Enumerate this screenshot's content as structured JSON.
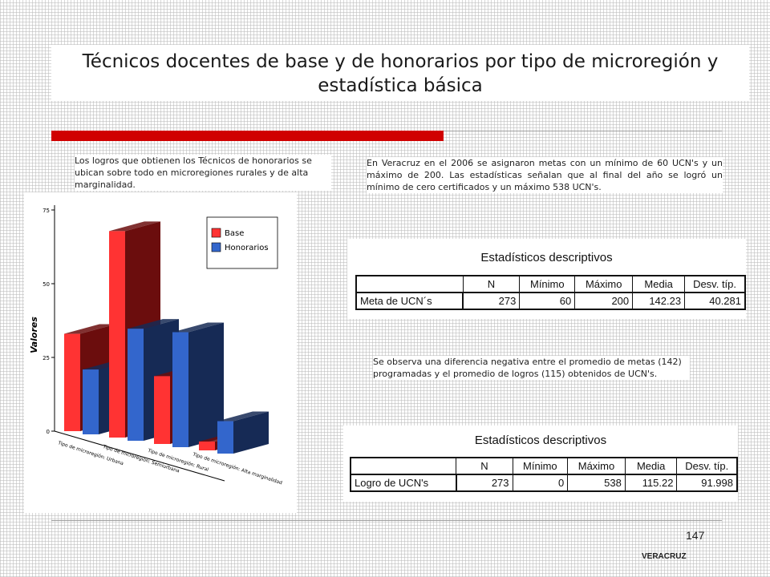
{
  "title": "Técnicos docentes de base y de honorarios por tipo de microregión y estadística básica",
  "text_left": "Los logros que obtienen los Técnicos de honorarios se ubican sobre todo en microregiones rurales y de alta marginalidad.",
  "text_right_top": "En Veracruz en el 2006 se asignaron metas con un mínimo de 60 UCN's y un máximo de 200. Las estadísticas señalan que al final del año se logró un mínimo de cero certificados y un máximo 538 UCN's.",
  "text_right_mid": "Se observa una diferencia negativa entre el promedio de metas (142) programadas y el promedio de logros (115) obtenidos de UCN's.",
  "colors": {
    "base": "#ff3333",
    "base_side": "#6b0d0d",
    "honorarios": "#3366cc",
    "honorarios_side": "#162a55",
    "accent": "#d00000"
  },
  "chart_data": {
    "type": "bar",
    "ylabel": "Valores",
    "yticks": [
      0,
      25,
      50,
      75
    ],
    "ylim": [
      0,
      75
    ],
    "categories": [
      "Tipo de microregión: Urbana",
      "Tipo de microregión: Semiurbana",
      "Tipo de microregión: Rural",
      "Tipo de microregión: Alta marginalidad"
    ],
    "series": [
      {
        "name": "Base",
        "values": [
          33,
          70,
          23,
          3
        ]
      },
      {
        "name": "Honorarios",
        "values": [
          22,
          38,
          39,
          11
        ]
      }
    ],
    "legend": [
      "Base",
      "Honorarios"
    ],
    "legend_position": "top-right"
  },
  "table1": {
    "title": "Estadísticos descriptivos",
    "headers": [
      "N",
      "Mínimo",
      "Máximo",
      "Media",
      "Desv. típ."
    ],
    "row_label": "Meta de UCN´s",
    "values": [
      "273",
      "60",
      "200",
      "142.23",
      "40.281"
    ]
  },
  "table2": {
    "title": "Estadísticos descriptivos",
    "headers": [
      "N",
      "Mínimo",
      "Máximo",
      "Media",
      "Desv. típ."
    ],
    "row_label": "Logro de UCN's",
    "values": [
      "273",
      "0",
      "538",
      "115.22",
      "91.998"
    ]
  },
  "page_number": "147",
  "footer": "VERACRUZ"
}
